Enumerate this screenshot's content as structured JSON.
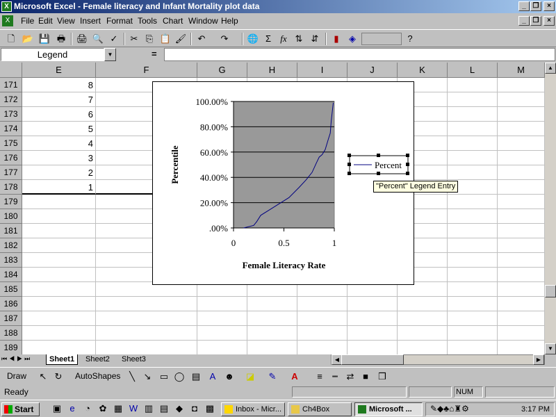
{
  "window": {
    "title": "Microsoft Excel - Female literacy and Infant Mortality plot data"
  },
  "menu": [
    "File",
    "Edit",
    "View",
    "Insert",
    "Format",
    "Tools",
    "Chart",
    "Window",
    "Help"
  ],
  "formula": {
    "name_box": "Legend",
    "equals": "=",
    "content": ""
  },
  "columns": [
    "E",
    "F",
    "G",
    "H",
    "I",
    "J",
    "K",
    "L",
    "M"
  ],
  "rows": [
    "171",
    "172",
    "173",
    "174",
    "175",
    "176",
    "177",
    "178",
    "179",
    "180",
    "181",
    "182",
    "183",
    "184",
    "185",
    "186",
    "187",
    "188",
    "189"
  ],
  "column_e_values": [
    "8",
    "7",
    "6",
    "5",
    "4",
    "3",
    "2",
    "1"
  ],
  "chart_data": {
    "type": "line",
    "title": "",
    "xlabel": "Female Literacy Rate",
    "ylabel": "Percentile",
    "xlim": [
      0,
      1
    ],
    "ylim": [
      0,
      1
    ],
    "x_ticks": [
      "0",
      "0.5",
      "1"
    ],
    "y_ticks": [
      ".00%",
      "20.00%",
      "40.00%",
      "60.00%",
      "80.00%",
      "100.00%"
    ],
    "grid": true,
    "legend": "right",
    "plot_area_color": "#999999",
    "series": [
      {
        "name": "Percent",
        "color": "#000080",
        "x": [
          0.1,
          0.2,
          0.23,
          0.27,
          0.35,
          0.45,
          0.55,
          0.65,
          0.72,
          0.78,
          0.82,
          0.85,
          0.88,
          0.91,
          0.94,
          0.96,
          0.97,
          0.98,
          0.99
        ],
        "y": [
          0.0,
          0.02,
          0.05,
          0.1,
          0.14,
          0.19,
          0.24,
          0.32,
          0.38,
          0.44,
          0.51,
          0.56,
          0.58,
          0.62,
          0.7,
          0.75,
          0.85,
          0.92,
          0.99
        ]
      }
    ]
  },
  "tooltip": "\"Percent\" Legend Entry",
  "sheet_tabs": [
    "Sheet1",
    "Sheet2",
    "Sheet3"
  ],
  "drawing": {
    "draw_label": "Draw",
    "autoshapes_label": "AutoShapes"
  },
  "status": {
    "text": "Ready",
    "num": "NUM"
  },
  "taskbar": {
    "start": "Start",
    "tasks": [
      "Inbox - Micr...",
      "Ch4Box",
      "Microsoft ..."
    ],
    "clock": "3:17 PM"
  }
}
